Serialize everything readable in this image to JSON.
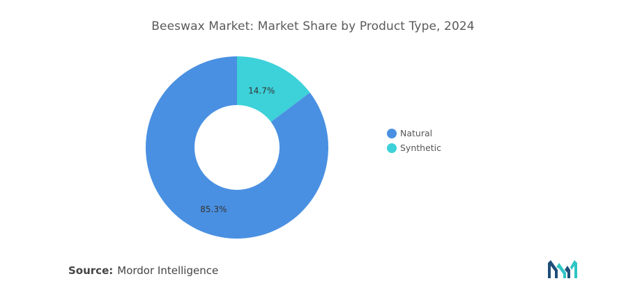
{
  "chart_data": {
    "type": "pie",
    "title": "Beeswax Market: Market Share by Product Type, 2024",
    "donut": true,
    "categories": [
      "Natural",
      "Synthetic"
    ],
    "values": [
      85.3,
      14.7
    ],
    "labels": [
      "85.3%",
      "14.7%"
    ],
    "colors": [
      "#4a90e2",
      "#3dd1d9"
    ],
    "legend_placement": "right"
  },
  "source": {
    "label": "Source:",
    "text": "Mordor Intelligence"
  },
  "logo": {
    "icon": "mordor-intelligence-logo",
    "colors": [
      "#1f4e79",
      "#2ec4c4"
    ]
  }
}
